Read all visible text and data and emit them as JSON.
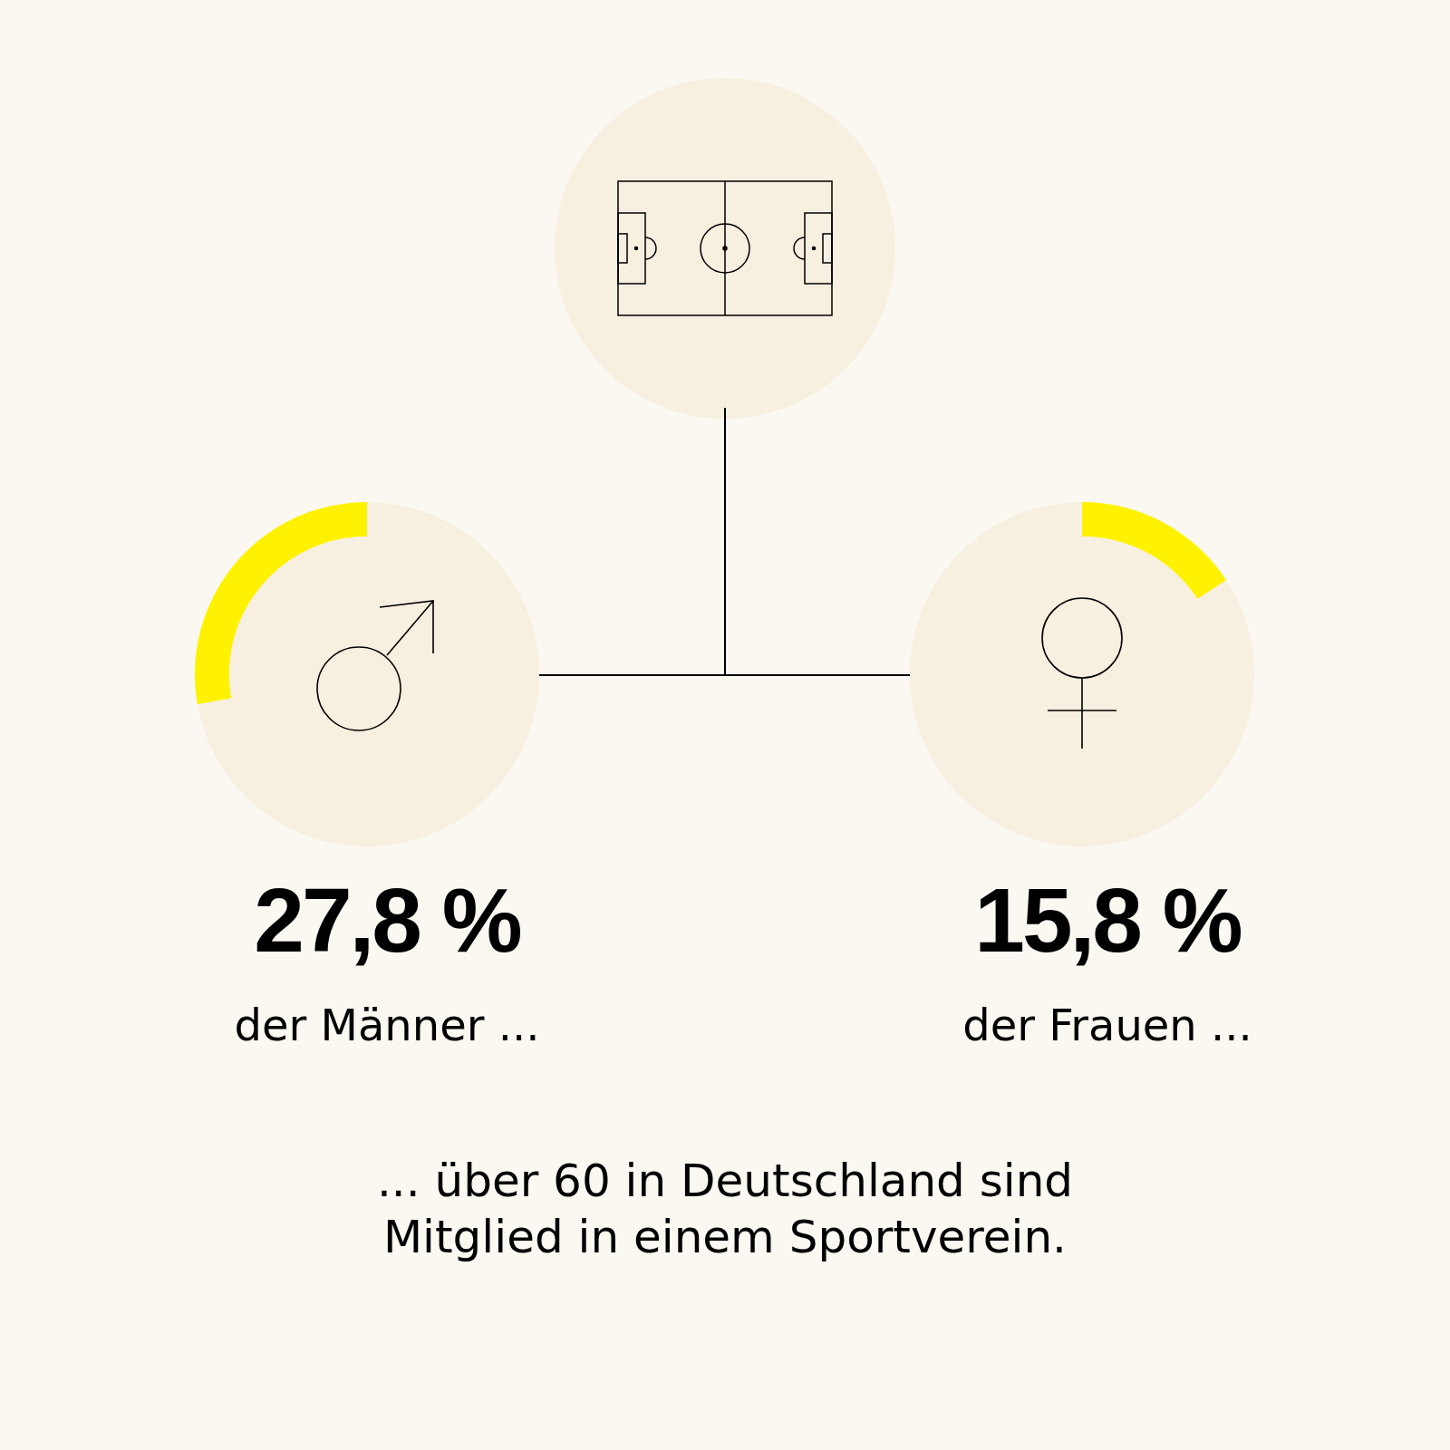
{
  "chart_data": [
    {
      "type": "donut",
      "title": "27,8 %",
      "subtitle": "der Männer ...",
      "categories": [
        null,
        null
      ],
      "values": [
        27.8,
        72.2
      ],
      "colors": [
        "#fff200",
        "#f7efdf"
      ],
      "annotations": [
        "... über 60 in Deutschland sind\nMitglied in einem Sportverein."
      ]
    },
    {
      "type": "donut",
      "title": "15,8 %",
      "subtitle": "der Frauen ...",
      "categories": [
        null,
        null
      ],
      "values": [
        15.8,
        84.2
      ],
      "colors": [
        "#fff200",
        "#f7efdf"
      ]
    }
  ]
}
